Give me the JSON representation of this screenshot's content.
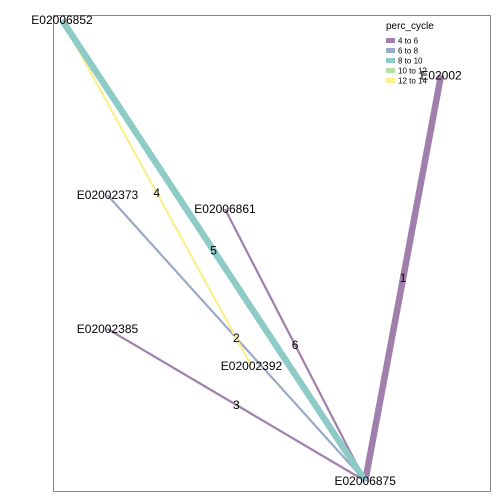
{
  "chart_data": {
    "type": "network",
    "legend": {
      "title": "perc_cycle",
      "placement": "top-right",
      "entries": [
        {
          "label": "4 to 6",
          "color": "#a07fad"
        },
        {
          "label": "6 to 8",
          "color": "#99aac6"
        },
        {
          "label": "8 to 10",
          "color": "#8fcbc6"
        },
        {
          "label": "10 to 12",
          "color": "#b4dfa6"
        },
        {
          "label": "12 to 14",
          "color": "#fbee8d"
        }
      ]
    },
    "nodes": [
      {
        "id": "E02006852",
        "label": "E02006852",
        "x": 0.0,
        "y": 1.0
      },
      {
        "id": "E02002",
        "label": "E02002",
        "x": 1.0,
        "y": 0.88
      },
      {
        "id": "E02002373",
        "label": "E02002373",
        "x": 0.12,
        "y": 0.62
      },
      {
        "id": "E02006861",
        "label": "E02006861",
        "x": 0.43,
        "y": 0.59
      },
      {
        "id": "E02002385",
        "label": "E02002385",
        "x": 0.12,
        "y": 0.33
      },
      {
        "id": "E02002392",
        "label": "E02002392",
        "x": 0.5,
        "y": 0.25
      },
      {
        "id": "E02006875",
        "label": "E02006875",
        "x": 0.8,
        "y": 0.0
      }
    ],
    "edges": [
      {
        "label": "1",
        "source": "E02006875",
        "target": "E02002",
        "perc_cycle": "4 to 6",
        "weight": 3
      },
      {
        "label": "2",
        "source": "E02002373",
        "target": "E02006875",
        "perc_cycle": "6 to 8",
        "weight": 1
      },
      {
        "label": "3",
        "source": "E02002385",
        "target": "E02006875",
        "perc_cycle": "4 to 6",
        "weight": 1
      },
      {
        "label": "4",
        "source": "E02006852",
        "target": "E02002392",
        "perc_cycle": "12 to 14",
        "weight": 1
      },
      {
        "label": "5",
        "source": "E02006852",
        "target": "E02006875",
        "perc_cycle": "8 to 10",
        "weight": 3
      },
      {
        "label": "6",
        "source": "E02006861",
        "target": "E02006875",
        "perc_cycle": "4 to 6",
        "weight": 1
      }
    ]
  }
}
